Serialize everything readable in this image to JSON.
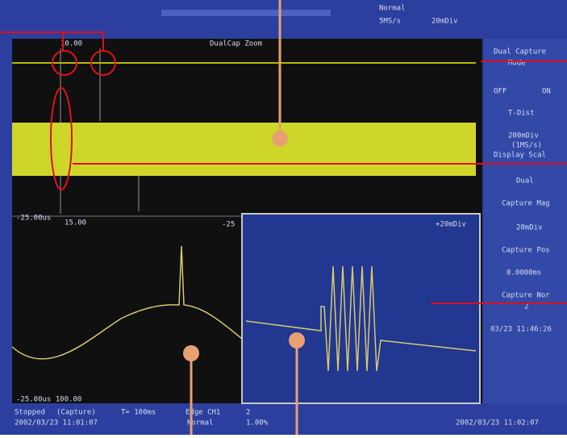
{
  "top_bar": {
    "mode": "Normal",
    "rate": "5MS/s",
    "scale": "20mDiv"
  },
  "screen_labels": {
    "main_left": "10.00",
    "main_right": "DualCap Zoom",
    "lower_left": "-25.00us",
    "lower_mid": "15.00",
    "lower_right": "-25",
    "zoom_scale": "+20mDiv",
    "lower_bottom": "-25.00us  100.00"
  },
  "menu": [
    "Dual Capture",
    "Mode",
    "OFF",
    "ON",
    "T-Dist",
    "200mDiv",
    "(1MS/s)",
    "Display Scal",
    "Dual",
    "Capture Mag",
    "20mDiv",
    "Capture Pos",
    "0.0000ms",
    "Capture Nor",
    "2",
    "03/23 11:46:26"
  ],
  "status": {
    "state": "Stopped",
    "source": "(Capture)",
    "time": "T= 100ms",
    "trigger": "Edge CH1",
    "count": "2",
    "date": "2002/03/23 11:01:07",
    "trig_mode": "Normal",
    "level": "1.00%",
    "clock": "2002/03/23 11:02:07"
  }
}
